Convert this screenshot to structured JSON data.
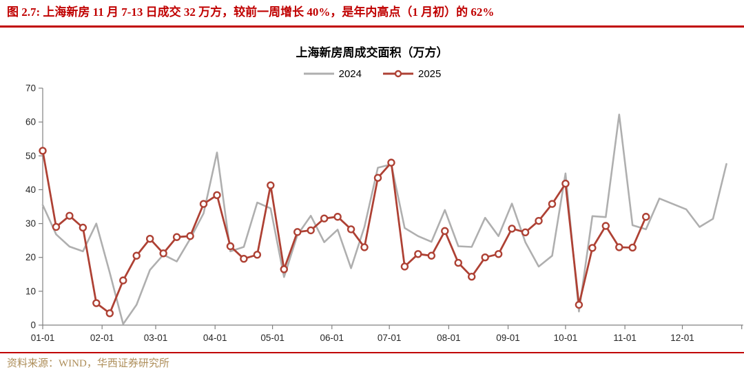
{
  "report": {
    "figure_title": "图 2.7:  上海新房 11 月 7-13 日成交 32 万方，较前一周增长 40%，是年内高点（1 月初）的 62%",
    "source_note": "资料来源：WIND，华西证券研究所"
  },
  "colors": {
    "title_red": "#C00000",
    "rule_red": "#C00000",
    "source_gold": "#AD8D58",
    "axis_line": "#808080",
    "tick_text": "#262626",
    "series_2024": "#AFAFAF",
    "series_2025": "#AE4134"
  },
  "chart_data": {
    "type": "line",
    "title": "上海新房周成交面积（万方）",
    "xlabel": "",
    "ylabel": "",
    "ylim": [
      0,
      70
    ],
    "y_ticks": [
      0,
      10,
      20,
      30,
      40,
      50,
      60,
      70
    ],
    "grid": false,
    "legend_position": "top-center",
    "x_axis_unit": "month-day",
    "x_domain_days": [
      0,
      365
    ],
    "x_ticks": [
      {
        "day": 0,
        "label": "01-01"
      },
      {
        "day": 31,
        "label": "02-01"
      },
      {
        "day": 59,
        "label": "03-01"
      },
      {
        "day": 90,
        "label": "04-01"
      },
      {
        "day": 120,
        "label": "05-01"
      },
      {
        "day": 151,
        "label": "06-01"
      },
      {
        "day": 181,
        "label": "07-01"
      },
      {
        "day": 212,
        "label": "08-01"
      },
      {
        "day": 243,
        "label": "09-01"
      },
      {
        "day": 273,
        "label": "10-01"
      },
      {
        "day": 304,
        "label": "11-01"
      },
      {
        "day": 334,
        "label": "12-01"
      },
      {
        "day": 365,
        "label": ""
      }
    ],
    "series": [
      {
        "name": "2024",
        "color": "#AFAFAF",
        "marker": "none",
        "line_width": 2.6,
        "x_start_day": 0,
        "x_step_days": 7,
        "values": [
          35.5,
          26.8,
          23.2,
          21.8,
          30.0,
          15.5,
          0.3,
          6.0,
          16.3,
          20.8,
          18.8,
          25.5,
          33.0,
          51.0,
          21.8,
          23.1,
          36.2,
          34.5,
          14.2,
          26.6,
          32.3,
          24.5,
          28.2,
          16.8,
          29.0,
          46.5,
          47.5,
          28.7,
          26.3,
          24.6,
          34.0,
          23.3,
          23.1,
          31.7,
          26.3,
          35.9,
          24.5,
          17.3,
          20.5,
          44.8,
          4.0,
          32.2,
          31.9,
          62.2,
          29.5,
          28.3,
          37.4,
          35.8,
          34.2,
          29.0,
          31.4,
          47.6
        ]
      },
      {
        "name": "2025",
        "color": "#AE4134",
        "marker": "circle",
        "line_width": 2.8,
        "x_start_day": 0,
        "x_step_days": 7,
        "values": [
          51.5,
          29.0,
          32.3,
          28.8,
          6.5,
          3.5,
          13.2,
          20.5,
          25.5,
          21.2,
          26.0,
          26.3,
          35.8,
          38.4,
          23.3,
          19.6,
          20.8,
          41.3,
          16.5,
          27.5,
          28.0,
          31.5,
          32.0,
          28.3,
          23.0,
          43.5,
          48.0,
          17.3,
          21.0,
          20.5,
          27.8,
          18.4,
          14.3,
          20.0,
          21.0,
          28.5,
          27.4,
          30.8,
          35.8,
          41.8,
          6.0,
          22.8,
          29.3,
          23.0,
          22.9,
          32.0
        ]
      }
    ]
  }
}
